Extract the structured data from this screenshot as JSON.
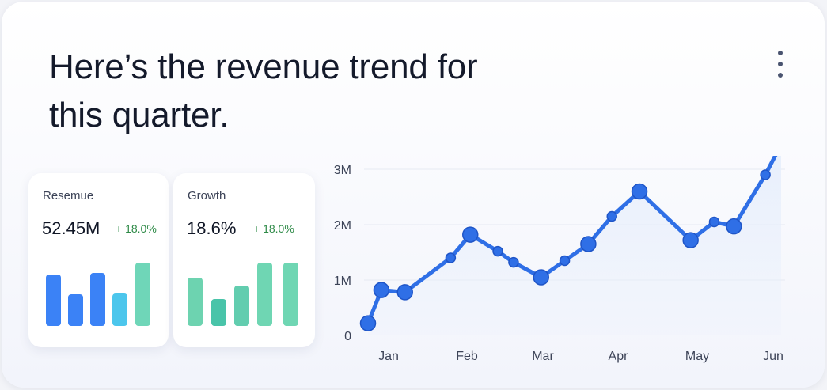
{
  "headline": "Here’s the revenue trend for this quarter.",
  "menu_icon": "more-vertical-icon",
  "stats": [
    {
      "label": "Resemue",
      "value": "52.45M",
      "delta": "+ 18.0%",
      "bars": [
        0.65,
        0.4,
        0.67,
        0.41,
        0.8
      ],
      "bar_colors": [
        "#3b82f6",
        "#3b82f6",
        "#3b82f6",
        "#4cc6ec",
        "#6fd6b8"
      ]
    },
    {
      "label": "Growth",
      "value": "18.6%",
      "delta": "+ 18.0%",
      "bars": [
        0.61,
        0.34,
        0.51,
        0.8,
        0.8
      ],
      "bar_colors": [
        "#6dd3b0",
        "#49c4a9",
        "#62cdaf",
        "#6fd6b3",
        "#6fd6b3"
      ]
    }
  ],
  "colors": {
    "accent": "#2f6fe6",
    "positive": "#2e8a47",
    "area_fill": "#e6eefc"
  },
  "chart_data": {
    "type": "line",
    "x_tick_labels": [
      "Jan",
      "Feb",
      "Mar",
      "Apr",
      "May",
      "Jun"
    ],
    "y_tick_labels": [
      "0",
      "1M",
      "2M",
      "3M"
    ],
    "ylim": [
      0,
      3.5
    ],
    "xlim": [
      0.75,
      6
    ],
    "grid": true,
    "series": [
      {
        "points": [
          {
            "x": 0.75,
            "y": 0.22,
            "marker": "large"
          },
          {
            "x": 0.92,
            "y": 0.82,
            "marker": "large"
          },
          {
            "x": 1.22,
            "y": 0.78,
            "marker": "large"
          },
          {
            "x": 1.8,
            "y": 1.4,
            "marker": "small"
          },
          {
            "x": 2.05,
            "y": 1.82,
            "marker": "large"
          },
          {
            "x": 2.4,
            "y": 1.52,
            "marker": "small"
          },
          {
            "x": 2.6,
            "y": 1.32,
            "marker": "small"
          },
          {
            "x": 2.95,
            "y": 1.05,
            "marker": "large"
          },
          {
            "x": 3.25,
            "y": 1.35,
            "marker": "small"
          },
          {
            "x": 3.55,
            "y": 1.65,
            "marker": "large"
          },
          {
            "x": 3.85,
            "y": 2.15,
            "marker": "small"
          },
          {
            "x": 4.2,
            "y": 2.6,
            "marker": "large"
          },
          {
            "x": 4.85,
            "y": 1.72,
            "marker": "large"
          },
          {
            "x": 5.15,
            "y": 2.05,
            "marker": "small"
          },
          {
            "x": 5.4,
            "y": 1.97,
            "marker": "large"
          },
          {
            "x": 5.8,
            "y": 2.9,
            "marker": "small"
          },
          {
            "x": 6.0,
            "y": 3.45,
            "marker": "large"
          }
        ]
      }
    ]
  }
}
